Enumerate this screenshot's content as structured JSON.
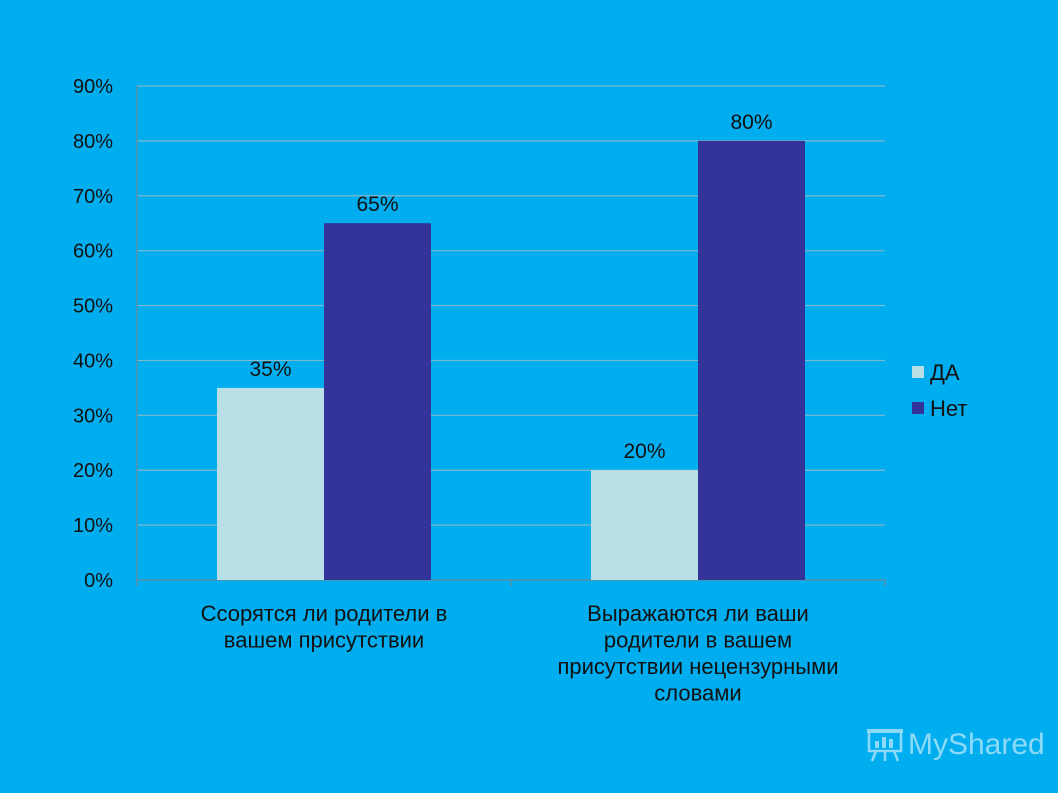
{
  "chart_data": {
    "type": "bar",
    "categories": [
      [
        "Ссорятся ли родители в",
        "вашем присутствии"
      ],
      [
        "Выражаются ли ваши",
        "родители в вашем",
        "присутствии нецензурными",
        "словами"
      ]
    ],
    "series": [
      {
        "name": "ДА",
        "values": [
          35,
          20
        ],
        "color": "#b8e0e6"
      },
      {
        "name": "Нет",
        "values": [
          65,
          80
        ],
        "color": "#333399"
      }
    ],
    "data_labels": [
      [
        "35%",
        "20%"
      ],
      [
        "65%",
        "80%"
      ]
    ],
    "y_ticks": [
      "0%",
      "10%",
      "20%",
      "30%",
      "40%",
      "50%",
      "60%",
      "70%",
      "80%",
      "90%"
    ],
    "ylim": [
      0,
      90
    ],
    "grid": true,
    "legend_position": "right",
    "title": "",
    "xlabel": "",
    "ylabel": ""
  },
  "watermark": {
    "text": "MyShared",
    "icon": "presentation-board-icon"
  },
  "colors": {
    "background": "#00adef",
    "grid": "#7fb9cc",
    "axis": "#6a8a96"
  }
}
